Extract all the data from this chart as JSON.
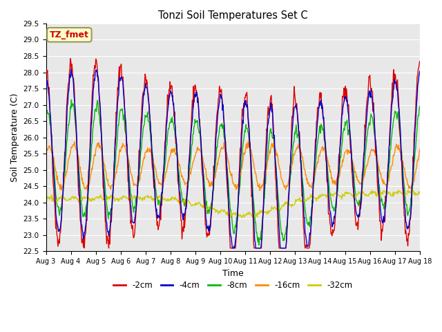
{
  "title": "Tonzi Soil Temperatures Set C",
  "xlabel": "Time",
  "ylabel": "Soil Temperature (C)",
  "ylim": [
    22.5,
    29.5
  ],
  "background_color": "#e8e8e8",
  "grid_color": "white",
  "label_box_text": "TZ_fmet",
  "label_box_facecolor": "#ffffcc",
  "label_box_edgecolor": "#999955",
  "label_box_textcolor": "#cc0000",
  "x_tick_labels": [
    "Aug 3",
    "Aug 4",
    "Aug 5",
    "Aug 6",
    "Aug 7",
    "Aug 8",
    "Aug 9",
    "Aug 10",
    "Aug 11",
    "Aug 12",
    "Aug 13",
    "Aug 14",
    "Aug 15",
    "Aug 16",
    "Aug 17",
    "Aug 18"
  ],
  "series_colors": [
    "#dd0000",
    "#0000cc",
    "#00bb00",
    "#ff8800",
    "#cccc00"
  ],
  "series_labels": [
    "-2cm",
    "-4cm",
    "-8cm",
    "-16cm",
    "-32cm"
  ]
}
